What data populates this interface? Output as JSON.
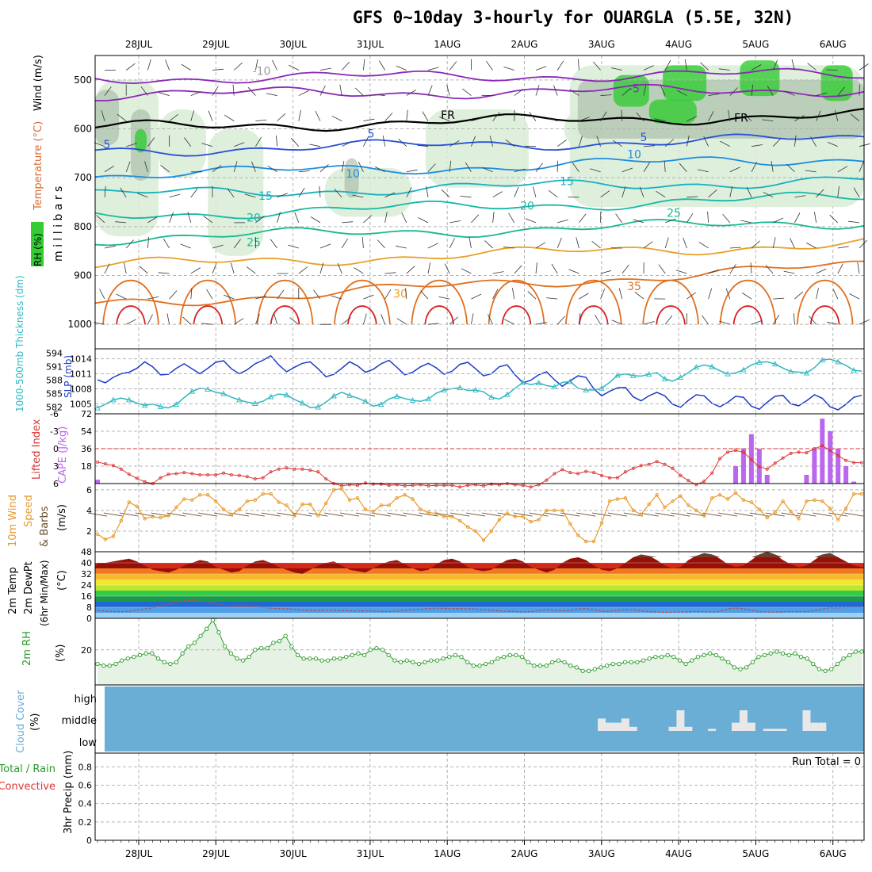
{
  "title": "GFS 0~10day 3-hourly for OUARGLA (5.5E, 32N)",
  "colors": {
    "rh_fill": "#d8ecd6",
    "rh_dark": "#9fb29c",
    "rh_green": "#33cc33",
    "slp": "#1c3cc8",
    "thickness": "#2cb8c0",
    "cape": "#bb66ee",
    "lifted_index": "#dd3333",
    "wind": "#e89a2c",
    "rh2m": "#2a9a2a",
    "cloud": "#6aaed6"
  },
  "chart_data": [
    {
      "id": "upper_air",
      "type": "heatmap",
      "description_keys": [
        "temperature_contours",
        "rh_shading",
        "wind_barbs"
      ],
      "x_tick_labels_top": [
        "28JUL",
        "29JUL",
        "30JUL",
        "31JUL",
        "1AUG",
        "2AUG",
        "3AUG",
        "4AUG",
        "5AUG",
        "6AUG"
      ],
      "ylabel": "m i l l i b a r s",
      "side_labels": [
        "Wind (m/s)",
        "Temperature (°C)",
        "RH (%)"
      ],
      "y_ticks": [
        500,
        600,
        700,
        800,
        900,
        1000
      ],
      "ylim": [
        1050,
        450
      ],
      "freezing_label": "FR",
      "freezing_label_2": "FR",
      "isotherms": [
        {
          "temp": "-10",
          "label": "-10",
          "level_start": 497,
          "level_end": 488
        },
        {
          "temp": "-5",
          "label": "-5",
          "level_start": 530,
          "level_end": 520
        },
        {
          "temp": "0",
          "label": "FR",
          "level_start": 598,
          "level_end": 572
        },
        {
          "temp": "5",
          "label": "5",
          "level_start": 645,
          "level_end": 620
        },
        {
          "temp": "10",
          "label": "10",
          "level_start": 695,
          "level_end": 660
        },
        {
          "temp": "15",
          "label": "15",
          "level_start": 735,
          "level_end": 705
        },
        {
          "temp": "20",
          "label": "20",
          "level_start": 778,
          "level_end": 740
        },
        {
          "temp": "25",
          "label": "25",
          "level_start": 825,
          "level_end": 790
        },
        {
          "temp": "30",
          "label": "30",
          "level_start": 880,
          "level_end": 835
        },
        {
          "temp": "35",
          "label": "35",
          "level_start": 960,
          "level_end": 880
        }
      ],
      "contour_labels": [
        "-10",
        "-5",
        "FR",
        "5",
        "10",
        "15",
        "20",
        "25",
        "30",
        "35",
        "-5",
        "FR",
        "5",
        "10",
        "15",
        "20",
        "25"
      ]
    },
    {
      "id": "slp_thickness",
      "type": "line",
      "ylabel_left": "1000-500mb Thickness (dm)",
      "ylabel_right": "SLP (mb)",
      "thickness_ticks": [
        "594",
        "591",
        "588",
        "585",
        "582"
      ],
      "slp_ticks": [
        "1014",
        "1011",
        "1008",
        "1005"
      ],
      "series": [
        {
          "name": "SLP (mb)",
          "ylim": [
            1003,
            1016
          ],
          "values": [
            1009.8,
            1009.2,
            1010.3,
            1011.0,
            1011.3,
            1012.1,
            1013.4,
            1012.4,
            1010.8,
            1010.9,
            1012.1,
            1013.0,
            1012.0,
            1011.0,
            1012.1,
            1013.3,
            1013.6,
            1012.0,
            1011.0,
            1011.8,
            1013.0,
            1013.7,
            1014.6,
            1012.8,
            1011.4,
            1012.3,
            1013.1,
            1013.4,
            1012.0,
            1010.4,
            1010.9,
            1012.1,
            1013.4,
            1012.6,
            1011.3,
            1011.9,
            1013.0,
            1013.7,
            1012.3,
            1010.8,
            1011.3,
            1012.4,
            1013.1,
            1012.2,
            1010.9,
            1011.5,
            1012.9,
            1013.3,
            1012.0,
            1010.6,
            1011.0,
            1012.4,
            1012.8,
            1010.8,
            1009.2,
            1009.7,
            1010.8,
            1011.4,
            1009.8,
            1008.5,
            1009.6,
            1010.6,
            1010.3,
            1008.0,
            1006.6,
            1007.5,
            1008.2,
            1008.3,
            1006.4,
            1005.6,
            1006.6,
            1007.3,
            1006.6,
            1004.9,
            1004.3,
            1005.7,
            1006.8,
            1006.6,
            1005.1,
            1004.4,
            1005.3,
            1006.5,
            1006.3,
            1004.5,
            1003.9,
            1005.3,
            1006.5,
            1006.7,
            1005.0,
            1004.6,
            1005.6,
            1006.8,
            1006.1,
            1004.4,
            1003.8,
            1004.9,
            1006.3,
            1006.7
          ]
        },
        {
          "name": "1000-500mb Thickness (dm)",
          "ylim": [
            580.5,
            595.0
          ],
          "values": [
            581.8,
            582.6,
            583.6,
            584.0,
            583.6,
            582.9,
            582.4,
            582.7,
            582.1,
            581.8,
            582.6,
            584.1,
            585.5,
            586.2,
            586.0,
            585.3,
            585.0,
            584.2,
            583.6,
            583.1,
            582.8,
            583.3,
            584.3,
            584.9,
            584.7,
            583.7,
            582.9,
            581.9,
            582.0,
            583.1,
            584.5,
            585.3,
            584.6,
            584.0,
            583.3,
            582.2,
            582.6,
            583.8,
            584.4,
            583.9,
            583.5,
            583.3,
            583.8,
            585.1,
            585.8,
            586.1,
            586.3,
            585.7,
            585.8,
            585.4,
            584.2,
            583.8,
            584.8,
            586.2,
            587.5,
            587.0,
            587.4,
            586.8,
            586.5,
            587.5,
            587.7,
            586.2,
            585.8,
            585.8,
            586.2,
            587.5,
            589.1,
            589.4,
            589.0,
            588.9,
            589.3,
            589.7,
            588.3,
            587.8,
            588.6,
            589.7,
            590.9,
            591.4,
            591.0,
            590.1,
            589.4,
            589.6,
            590.3,
            591.4,
            592.0,
            592.1,
            591.6,
            590.7,
            589.9,
            589.8,
            589.6,
            590.8,
            592.5,
            592.7,
            592.1,
            591.3,
            590.2,
            590.0
          ]
        }
      ]
    },
    {
      "id": "cape_li",
      "type": "bar",
      "ylabel_left": "Lifted Index",
      "ylabel_right": "CAPE (J/kg)",
      "li_ticks": [
        "-6",
        "-3",
        "0",
        "3",
        "6"
      ],
      "cape_ticks": [
        "72",
        "54",
        "36",
        "18"
      ],
      "cape_ylim": [
        0,
        72
      ],
      "li_ylim": [
        6,
        -6
      ],
      "cape_bars": [
        {
          "index": 0,
          "value": 4
        },
        {
          "index": 81,
          "value": 18
        },
        {
          "index": 82,
          "value": 36
        },
        {
          "index": 83,
          "value": 51
        },
        {
          "index": 84,
          "value": 36
        },
        {
          "index": 85,
          "value": 9
        },
        {
          "index": 90,
          "value": 9
        },
        {
          "index": 91,
          "value": 36
        },
        {
          "index": 92,
          "value": 67
        },
        {
          "index": 93,
          "value": 54
        },
        {
          "index": 94,
          "value": 36
        },
        {
          "index": 95,
          "value": 18
        },
        {
          "index": 96,
          "value": 2
        }
      ],
      "lifted_index": [
        2.3,
        2.6,
        2.9,
        3.5,
        4.4,
        5.1,
        5.7,
        6.0,
        5.0,
        4.4,
        4.3,
        4.1,
        4.3,
        4.5,
        4.5,
        4.5,
        4.2,
        4.5,
        4.6,
        4.8,
        5.2,
        5.0,
        4.0,
        3.5,
        3.3,
        3.5,
        3.5,
        3.7,
        4.0,
        5.2,
        6.0,
        6.4,
        6.2,
        6.3,
        5.9,
        6.1,
        6.1,
        6.3,
        6.2,
        6.4,
        6.3,
        6.2,
        6.4,
        6.3,
        6.3,
        6.3,
        6.6,
        6.3,
        6.2,
        6.4,
        6.1,
        6.2,
        6.0,
        6.2,
        6.3,
        6.6,
        6.2,
        5.4,
        4.3,
        3.6,
        4.1,
        4.3,
        3.9,
        4.1,
        4.6,
        5.0,
        5.0,
        4.0,
        3.4,
        2.9,
        2.7,
        2.2,
        2.7,
        3.4,
        4.6,
        5.5,
        6.2,
        5.6,
        4.2,
        1.7,
        0.6,
        0.3,
        0.6,
        1.9,
        3.1,
        3.5,
        2.5,
        1.6,
        0.8,
        0.6,
        0.7,
        0.0,
        -0.5,
        0.3,
        1.2,
        2.0,
        2.4,
        2.4
      ]
    },
    {
      "id": "wind10m",
      "type": "line",
      "ylabel": "10m Wind Speed & Barbs (m/s)",
      "y_ticks": [
        "6",
        "4",
        "2"
      ],
      "ylim": [
        0,
        6.6
      ],
      "series": [
        {
          "name": "10m Wind Speed",
          "values": [
            1.7,
            1.2,
            1.5,
            3.0,
            4.8,
            4.4,
            3.2,
            3.4,
            3.3,
            3.5,
            4.3,
            5.1,
            5.0,
            5.5,
            5.5,
            4.9,
            4.1,
            3.6,
            4.1,
            4.9,
            5.0,
            5.6,
            5.6,
            4.8,
            4.5,
            3.5,
            4.6,
            4.6,
            3.5,
            4.7,
            6.0,
            6.1,
            5.0,
            5.2,
            4.1,
            3.9,
            4.5,
            4.5,
            5.2,
            5.5,
            5.1,
            4.1,
            3.8,
            3.7,
            3.4,
            3.4,
            3.0,
            2.4,
            2.0,
            1.1,
            2.0,
            3.1,
            3.7,
            3.4,
            3.4,
            2.9,
            3.1,
            4.0,
            4.0,
            4.0,
            2.7,
            1.6,
            1.0,
            1.0,
            2.8,
            4.9,
            5.1,
            5.2,
            4.0,
            3.6,
            4.6,
            5.5,
            4.3,
            4.9,
            5.4,
            4.5,
            4.0,
            3.5,
            5.2,
            5.5,
            5.1,
            5.7,
            5.0,
            4.8,
            4.1,
            3.3,
            3.8,
            4.9,
            3.9,
            3.2,
            4.9,
            5.0,
            4.9,
            4.2,
            3.1,
            4.2,
            5.6,
            5.6
          ]
        }
      ]
    },
    {
      "id": "temp2m",
      "type": "area",
      "ylabel": "2m Temp 2m DewPt (6hr Min/Max) (°C)",
      "y_ticks": [
        "48",
        "40",
        "32",
        "24",
        "16",
        "8",
        "0"
      ],
      "ylim": [
        0,
        48
      ],
      "bands": [
        {
          "from": 0,
          "to": 4,
          "color": "#9cd0f4"
        },
        {
          "from": 4,
          "to": 8,
          "color": "#4f9ee8"
        },
        {
          "from": 8,
          "to": 12,
          "color": "#2268d2"
        },
        {
          "from": 12,
          "to": 16,
          "color": "#1a9a4a"
        },
        {
          "from": 16,
          "to": 20,
          "color": "#33cc44"
        },
        {
          "from": 20,
          "to": 24,
          "color": "#bde832"
        },
        {
          "from": 24,
          "to": 28,
          "color": "#f0e830"
        },
        {
          "from": 28,
          "to": 32,
          "color": "#f7b830"
        },
        {
          "from": 32,
          "to": 36,
          "color": "#f07820"
        },
        {
          "from": 36,
          "to": 40,
          "color": "#d42818"
        },
        {
          "from": 40,
          "to": 44,
          "color": "#961008"
        },
        {
          "from": 44,
          "to": 48,
          "color": "#6a3e30"
        }
      ],
      "temp_max": [
        40,
        40,
        41,
        42,
        43,
        41,
        38,
        35,
        34,
        33,
        35,
        38,
        40,
        42,
        41,
        37,
        35,
        33,
        34,
        38,
        41,
        42,
        40,
        37,
        35,
        33,
        32,
        35,
        38,
        40,
        41,
        38,
        35,
        34,
        33,
        36,
        39,
        41,
        42,
        39,
        36,
        34,
        35,
        39,
        42,
        43,
        41,
        37,
        35,
        34,
        35,
        39,
        42,
        43,
        41,
        37,
        35,
        33,
        35,
        40,
        43,
        44,
        42,
        38,
        35,
        34,
        36,
        40,
        44,
        46,
        45,
        42,
        38,
        36,
        37,
        42,
        45,
        47,
        46,
        43,
        39,
        37,
        38,
        42,
        46,
        48,
        46,
        42,
        39,
        37,
        38,
        42,
        46,
        47,
        44,
        41,
        38,
        37
      ],
      "dewpoint": [
        5.6,
        5.2,
        5.0,
        4.8,
        5.1,
        5.9,
        6.7,
        7.6,
        8.7,
        10.1,
        11.6,
        12.8,
        13.0,
        12.4,
        11.6,
        10.5,
        9.5,
        8.8,
        8.7,
        8.5,
        8.2,
        7.9,
        7.4,
        7.0,
        6.9,
        6.6,
        6.0,
        5.8,
        5.7,
        5.8,
        5.8,
        5.6,
        5.4,
        5.2,
        5.4,
        5.2,
        5.0,
        4.9,
        5.2,
        5.8,
        6.2,
        6.6,
        7.1,
        7.4,
        7.2,
        7.0,
        7.0,
        6.9,
        6.7,
        6.2,
        5.9,
        5.3,
        5.2,
        4.9,
        4.5,
        4.8,
        5.6,
        6.2,
        5.7,
        5.3,
        5.8,
        6.8,
        7.0,
        6.1,
        5.2,
        5.0,
        5.8,
        6.4,
        6.1,
        5.4,
        4.9,
        4.5,
        4.3,
        4.4,
        4.6,
        4.7,
        5.0,
        4.8,
        4.6,
        4.9,
        6.8,
        7.5,
        6.9,
        5.8,
        4.8,
        4.5,
        4.5,
        4.7,
        4.9,
        4.9,
        4.8,
        5.4,
        6.8,
        7.7,
        7.5,
        7.8,
        8.0,
        7.9
      ]
    },
    {
      "id": "rh2m",
      "type": "area",
      "ylabel": "2m RH (%)",
      "y_ticks": [
        "20"
      ],
      "ylim": [
        0,
        38
      ],
      "values": [
        12,
        11,
        11,
        12,
        14,
        15,
        16,
        17,
        18,
        18,
        15,
        13,
        12,
        13,
        18,
        22,
        24,
        28,
        32,
        37,
        30,
        22,
        18,
        15,
        14,
        16,
        20,
        21,
        21,
        24,
        25,
        28,
        22,
        17,
        15,
        15,
        15,
        14,
        14,
        15,
        15,
        16,
        17,
        18,
        17,
        20,
        21,
        20,
        17,
        14,
        13,
        14,
        13,
        12,
        13,
        14,
        14,
        15,
        16,
        17,
        16,
        13,
        11,
        11,
        12,
        13,
        15,
        16,
        17,
        17,
        16,
        13,
        11,
        11,
        11,
        13,
        14,
        13,
        11,
        10,
        8,
        8,
        9,
        10,
        11,
        12,
        12,
        13,
        13,
        13,
        14,
        15,
        16,
        16,
        17,
        16,
        14,
        12,
        14,
        16,
        17,
        18,
        17,
        15,
        13,
        10,
        9,
        10,
        13,
        16,
        17,
        18,
        19,
        18,
        17,
        18,
        16,
        15,
        12,
        9,
        8,
        9,
        12,
        15,
        17,
        19,
        19
      ]
    },
    {
      "id": "cloud",
      "type": "bar",
      "ylabel": "Cloud Cover (%)",
      "y_ticks": [
        "high",
        "middle",
        "low"
      ],
      "middle_level_cover": [
        {
          "index": 64,
          "value": 60
        },
        {
          "index": 65,
          "value": 40
        },
        {
          "index": 66,
          "value": 40
        },
        {
          "index": 67,
          "value": 60
        },
        {
          "index": 68,
          "value": 20
        },
        {
          "index": 73,
          "value": 20
        },
        {
          "index": 74,
          "value": 100
        },
        {
          "index": 75,
          "value": 20
        },
        {
          "index": 78,
          "value": 10
        },
        {
          "index": 81,
          "value": 40
        },
        {
          "index": 82,
          "value": 100
        },
        {
          "index": 83,
          "value": 40
        },
        {
          "index": 85,
          "value": 10
        },
        {
          "index": 86,
          "value": 10
        },
        {
          "index": 87,
          "value": 10
        },
        {
          "index": 90,
          "value": 100
        },
        {
          "index": 91,
          "value": 40
        },
        {
          "index": 92,
          "value": 40
        }
      ]
    },
    {
      "id": "precip",
      "type": "bar",
      "ylabel_left": "Total / Rain",
      "ylabel_left_2": "Convective",
      "ylabel": "3hr Precip (mm)",
      "y_ticks": [
        "0.8",
        "0.6",
        "0.4",
        "0.2",
        "0"
      ],
      "ylim": [
        0,
        0.95
      ],
      "run_total": "Run Total = 0",
      "values": []
    }
  ],
  "x_axis_bottom": [
    "28JUL",
    "29JUL",
    "30JUL",
    "31JUL",
    "1AUG",
    "2AUG",
    "3AUG",
    "4AUG",
    "5AUG",
    "6AUG"
  ]
}
